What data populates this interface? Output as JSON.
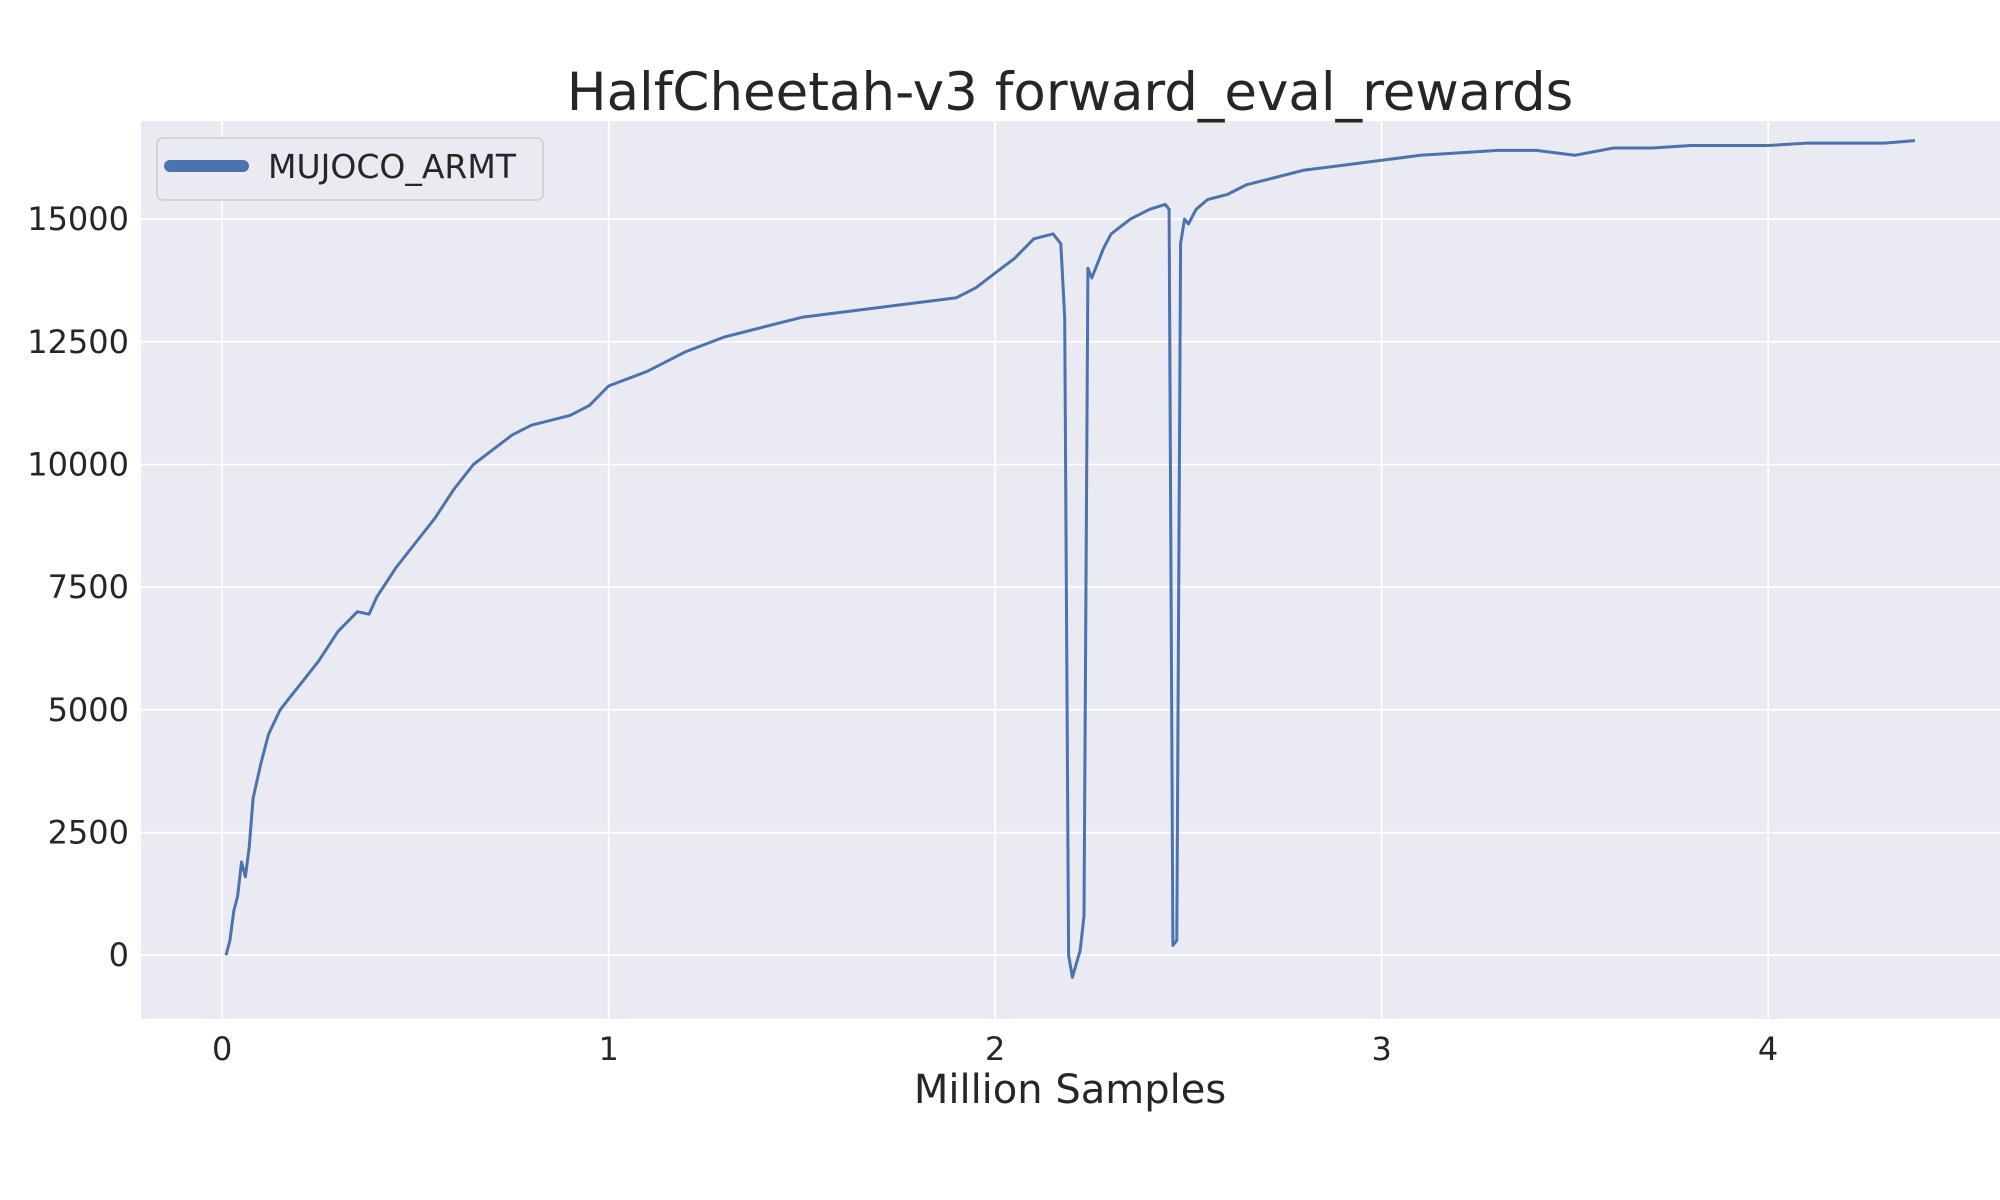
{
  "chart_data": {
    "type": "line",
    "title": "HalfCheetah-v3 forward_eval_rewards",
    "xlabel": "Million Samples",
    "ylabel": "",
    "xlim": [
      -0.21,
      4.6
    ],
    "ylim": [
      -1300,
      17000
    ],
    "x_ticks": [
      0,
      1,
      2,
      3,
      4
    ],
    "x_tick_labels": [
      "0",
      "1",
      "2",
      "3",
      "4"
    ],
    "y_ticks": [
      0,
      2500,
      5000,
      7500,
      10000,
      12500,
      15000
    ],
    "y_tick_labels": [
      "0",
      "2500",
      "5000",
      "7500",
      "10000",
      "12500",
      "15000"
    ],
    "grid": true,
    "legend": "top-left",
    "colors": {
      "background": "#eaeaf2",
      "grid": "#ffffff",
      "series": "#4c72b0",
      "legend_border": "#cccccc"
    },
    "series": [
      {
        "name": "MUJOCO_ARMT",
        "color": "#4c72b0",
        "x": [
          0.01,
          0.02,
          0.03,
          0.04,
          0.05,
          0.06,
          0.07,
          0.08,
          0.1,
          0.12,
          0.15,
          0.18,
          0.2,
          0.25,
          0.3,
          0.35,
          0.38,
          0.4,
          0.45,
          0.5,
          0.55,
          0.6,
          0.65,
          0.7,
          0.75,
          0.8,
          0.85,
          0.9,
          0.95,
          1.0,
          1.1,
          1.2,
          1.3,
          1.4,
          1.5,
          1.6,
          1.7,
          1.8,
          1.9,
          1.95,
          2.0,
          2.05,
          2.1,
          2.15,
          2.17,
          2.18,
          2.19,
          2.2,
          2.22,
          2.23,
          2.24,
          2.25,
          2.28,
          2.3,
          2.35,
          2.4,
          2.44,
          2.45,
          2.46,
          2.47,
          2.48,
          2.49,
          2.5,
          2.52,
          2.55,
          2.6,
          2.65,
          2.7,
          2.75,
          2.8,
          2.9,
          3.0,
          3.1,
          3.2,
          3.3,
          3.4,
          3.5,
          3.6,
          3.7,
          3.8,
          3.9,
          4.0,
          4.1,
          4.2,
          4.3,
          4.38
        ],
        "y": [
          0,
          300,
          900,
          1200,
          1900,
          1600,
          2200,
          3200,
          3900,
          4500,
          5000,
          5300,
          5500,
          6000,
          6600,
          7000,
          6950,
          7300,
          7900,
          8400,
          8900,
          9500,
          10000,
          10300,
          10600,
          10800,
          10900,
          11000,
          11200,
          11600,
          11900,
          12300,
          12600,
          12800,
          13000,
          13100,
          13200,
          13300,
          13400,
          13600,
          13900,
          14200,
          14600,
          14700,
          14500,
          13000,
          0,
          -450,
          100,
          800,
          14000,
          13800,
          14400,
          14700,
          15000,
          15200,
          15300,
          15200,
          200,
          300,
          14500,
          15000,
          14900,
          15200,
          15400,
          15500,
          15700,
          15800,
          15900,
          16000,
          16100,
          16200,
          16300,
          16350,
          16400,
          16400,
          16300,
          16450,
          16450,
          16500,
          16500,
          16500,
          16550,
          16550,
          16550,
          16600
        ]
      }
    ]
  }
}
